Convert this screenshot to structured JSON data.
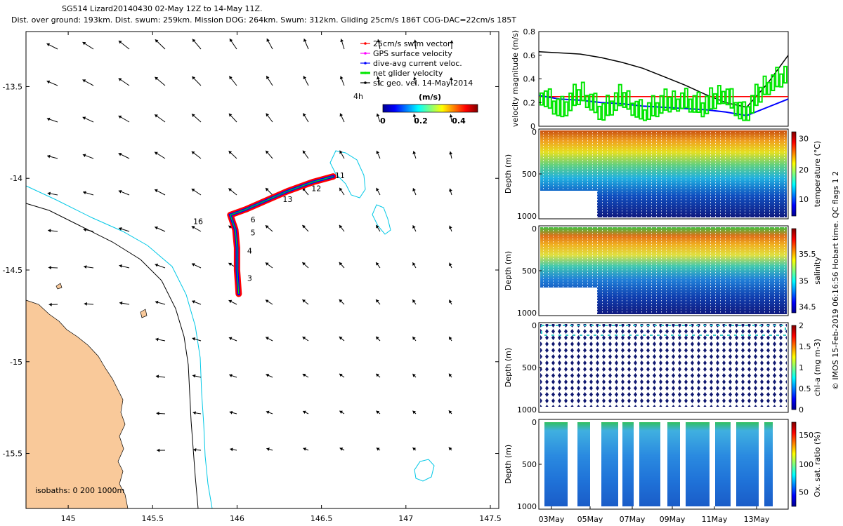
{
  "header": {
    "line1": "SG514 Lizard20140430 02-May 12Z to 14-May 11Z.",
    "line2": "Dist. over ground: 193km. Dist. swum: 259km. Mission DOG: 264km. Swum: 312km. Gliding 25cm/s 186T COG-DAC=22cm/s 185T"
  },
  "credit": "© IMOS 15-Feb-2019 06:16:56 Hobart time. QC flags 1  2",
  "colors": {
    "land": "#f9c99a",
    "isobath_200": "#000000",
    "isobath_1000": "#00c8e6",
    "swim": "#ff0000",
    "gps": "#ff00ff",
    "dac": "#0000ff",
    "net": "#00e600",
    "geo": "#000000"
  },
  "chart_data": [
    {
      "type": "map",
      "xlim": [
        144.75,
        147.55
      ],
      "ylim": [
        -15.8,
        -13.2
      ],
      "xticks": [
        "145",
        "145.5",
        "146",
        "146.5",
        "147",
        "147.5"
      ],
      "yticks": [
        "-13.5",
        "-14",
        "-14.5",
        "-15",
        "-15.5"
      ],
      "legend": {
        "position": "top-right",
        "entries": [
          {
            "label": "25cm/s swim vector",
            "color": "#ff0000"
          },
          {
            "label": "GPS surface velocity",
            "color": "#ff00ff"
          },
          {
            "label": "dive-avg current veloc.",
            "color": "#0000ff"
          },
          {
            "label": "net glider velocity",
            "color": "#00e600"
          },
          {
            "label": "sfc geo. vel. 14-May-2014",
            "color": "#000000"
          }
        ]
      },
      "speed_colorbar": {
        "unit": "(m/s)",
        "ticks": [
          "0",
          "0.2",
          "0.4"
        ],
        "range": [
          0,
          0.5
        ]
      },
      "isobaths_label": "isobaths: 0   200   1000m",
      "time_label": "4h",
      "track": {
        "points": [
          {
            "lon": 146.57,
            "lat": -13.99
          },
          {
            "lon": 146.45,
            "lat": -14.02
          },
          {
            "lon": 146.3,
            "lat": -14.07
          },
          {
            "lon": 146.15,
            "lat": -14.13
          },
          {
            "lon": 146.05,
            "lat": -14.17
          },
          {
            "lon": 145.96,
            "lat": -14.2
          },
          {
            "lon": 145.99,
            "lat": -14.28
          },
          {
            "lon": 146.0,
            "lat": -14.38
          },
          {
            "lon": 146.0,
            "lat": -14.5
          },
          {
            "lon": 146.01,
            "lat": -14.63
          }
        ],
        "day_labels": [
          {
            "text": "11",
            "lon": 146.58,
            "lat": -14.0
          },
          {
            "text": "12",
            "lon": 146.44,
            "lat": -14.07
          },
          {
            "text": "13",
            "lon": 146.27,
            "lat": -14.13
          },
          {
            "text": "6",
            "lon": 146.08,
            "lat": -14.24
          },
          {
            "text": "5",
            "lon": 146.08,
            "lat": -14.31
          },
          {
            "text": "4",
            "lon": 146.06,
            "lat": -14.41
          },
          {
            "text": "3",
            "lon": 146.06,
            "lat": -14.56
          },
          {
            "text": "16",
            "lon": 145.74,
            "lat": -14.25
          }
        ]
      }
    },
    {
      "type": "line",
      "ylabel": "velocity magnitude (m/s)",
      "ylim": [
        0,
        0.8
      ],
      "yticks": [
        "0",
        "0.2",
        "0.4",
        "0.6",
        "0.8"
      ],
      "x": [
        0,
        1,
        2,
        3,
        4,
        5,
        6,
        7,
        8,
        9,
        10,
        11,
        12
      ],
      "series": [
        {
          "color": "#000000",
          "values": [
            0.63,
            0.62,
            0.61,
            0.58,
            0.54,
            0.49,
            0.42,
            0.35,
            0.27,
            0.2,
            0.16,
            0.36,
            0.6
          ]
        },
        {
          "color": "#ff0000",
          "values": [
            0.25,
            0.25,
            0.25,
            0.25,
            0.25,
            0.25,
            0.25,
            0.25,
            0.25,
            0.25,
            0.25,
            0.25,
            0.25
          ]
        },
        {
          "color": "#0000ff",
          "values": [
            0.26,
            0.23,
            0.22,
            0.2,
            0.19,
            0.17,
            0.16,
            0.15,
            0.14,
            0.12,
            0.09,
            0.16,
            0.23
          ]
        },
        {
          "color": "#00e600",
          "values": [
            0.28,
            0.15,
            0.3,
            0.13,
            0.26,
            0.12,
            0.2,
            0.24,
            0.17,
            0.3,
            0.1,
            0.35,
            0.45
          ]
        }
      ]
    },
    {
      "type": "heatmap",
      "ylabel": "Depth (m)",
      "clabel": "temperature (°C)",
      "yticks": [
        "0",
        "500",
        "1000"
      ],
      "cticks": [
        "10",
        "20",
        "30"
      ]
    },
    {
      "type": "heatmap",
      "ylabel": "Depth (m)",
      "clabel": "salinity",
      "yticks": [
        "0",
        "500",
        "1000"
      ],
      "cticks": [
        "34.5",
        "35",
        "35.5"
      ]
    },
    {
      "type": "heatmap",
      "ylabel": "Depth (m)",
      "clabel": "chl-a (mg m-3)",
      "yticks": [
        "0",
        "500",
        "1000"
      ],
      "cticks": [
        "0",
        "0.5",
        "1",
        "1.5",
        "2"
      ]
    },
    {
      "type": "heatmap",
      "ylabel": "Depth (m)",
      "clabel": "Ox. sat. ratio (%)",
      "yticks": [
        "0",
        "500",
        "1000"
      ],
      "cticks": [
        "50",
        "100",
        "150"
      ],
      "xticks": [
        "03May",
        "05May",
        "07May",
        "09May",
        "11May",
        "13May"
      ]
    }
  ]
}
